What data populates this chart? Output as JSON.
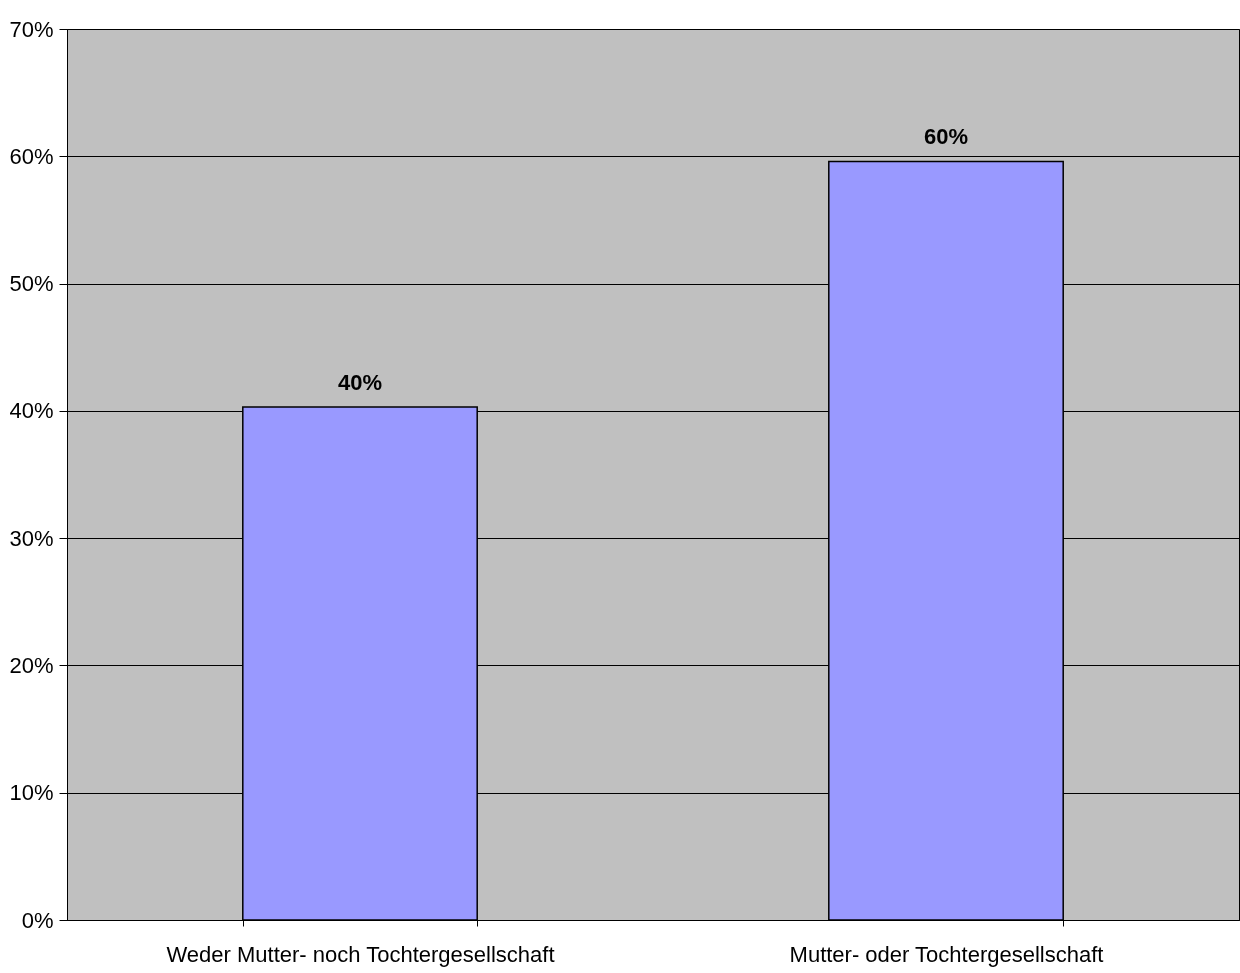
{
  "chart_data": {
    "type": "bar",
    "categories": [
      "Weder Mutter- noch Tochtergesellschaft",
      "Mutter- oder Tochtergesellschaft"
    ],
    "values": [
      40.3,
      59.6
    ],
    "value_labels": [
      "40%",
      "60%"
    ],
    "color": "#9999ff",
    "ylim": [
      0,
      70
    ],
    "yticks": [
      {
        "value": 0,
        "label": "0%"
      },
      {
        "value": 10,
        "label": "10%"
      },
      {
        "value": 20,
        "label": "20%"
      },
      {
        "value": 30,
        "label": "30%"
      },
      {
        "value": 40,
        "label": "40%"
      },
      {
        "value": 50,
        "label": "50%"
      },
      {
        "value": 60,
        "label": "60%"
      },
      {
        "value": 70,
        "label": "70%"
      }
    ],
    "grid": "y"
  }
}
